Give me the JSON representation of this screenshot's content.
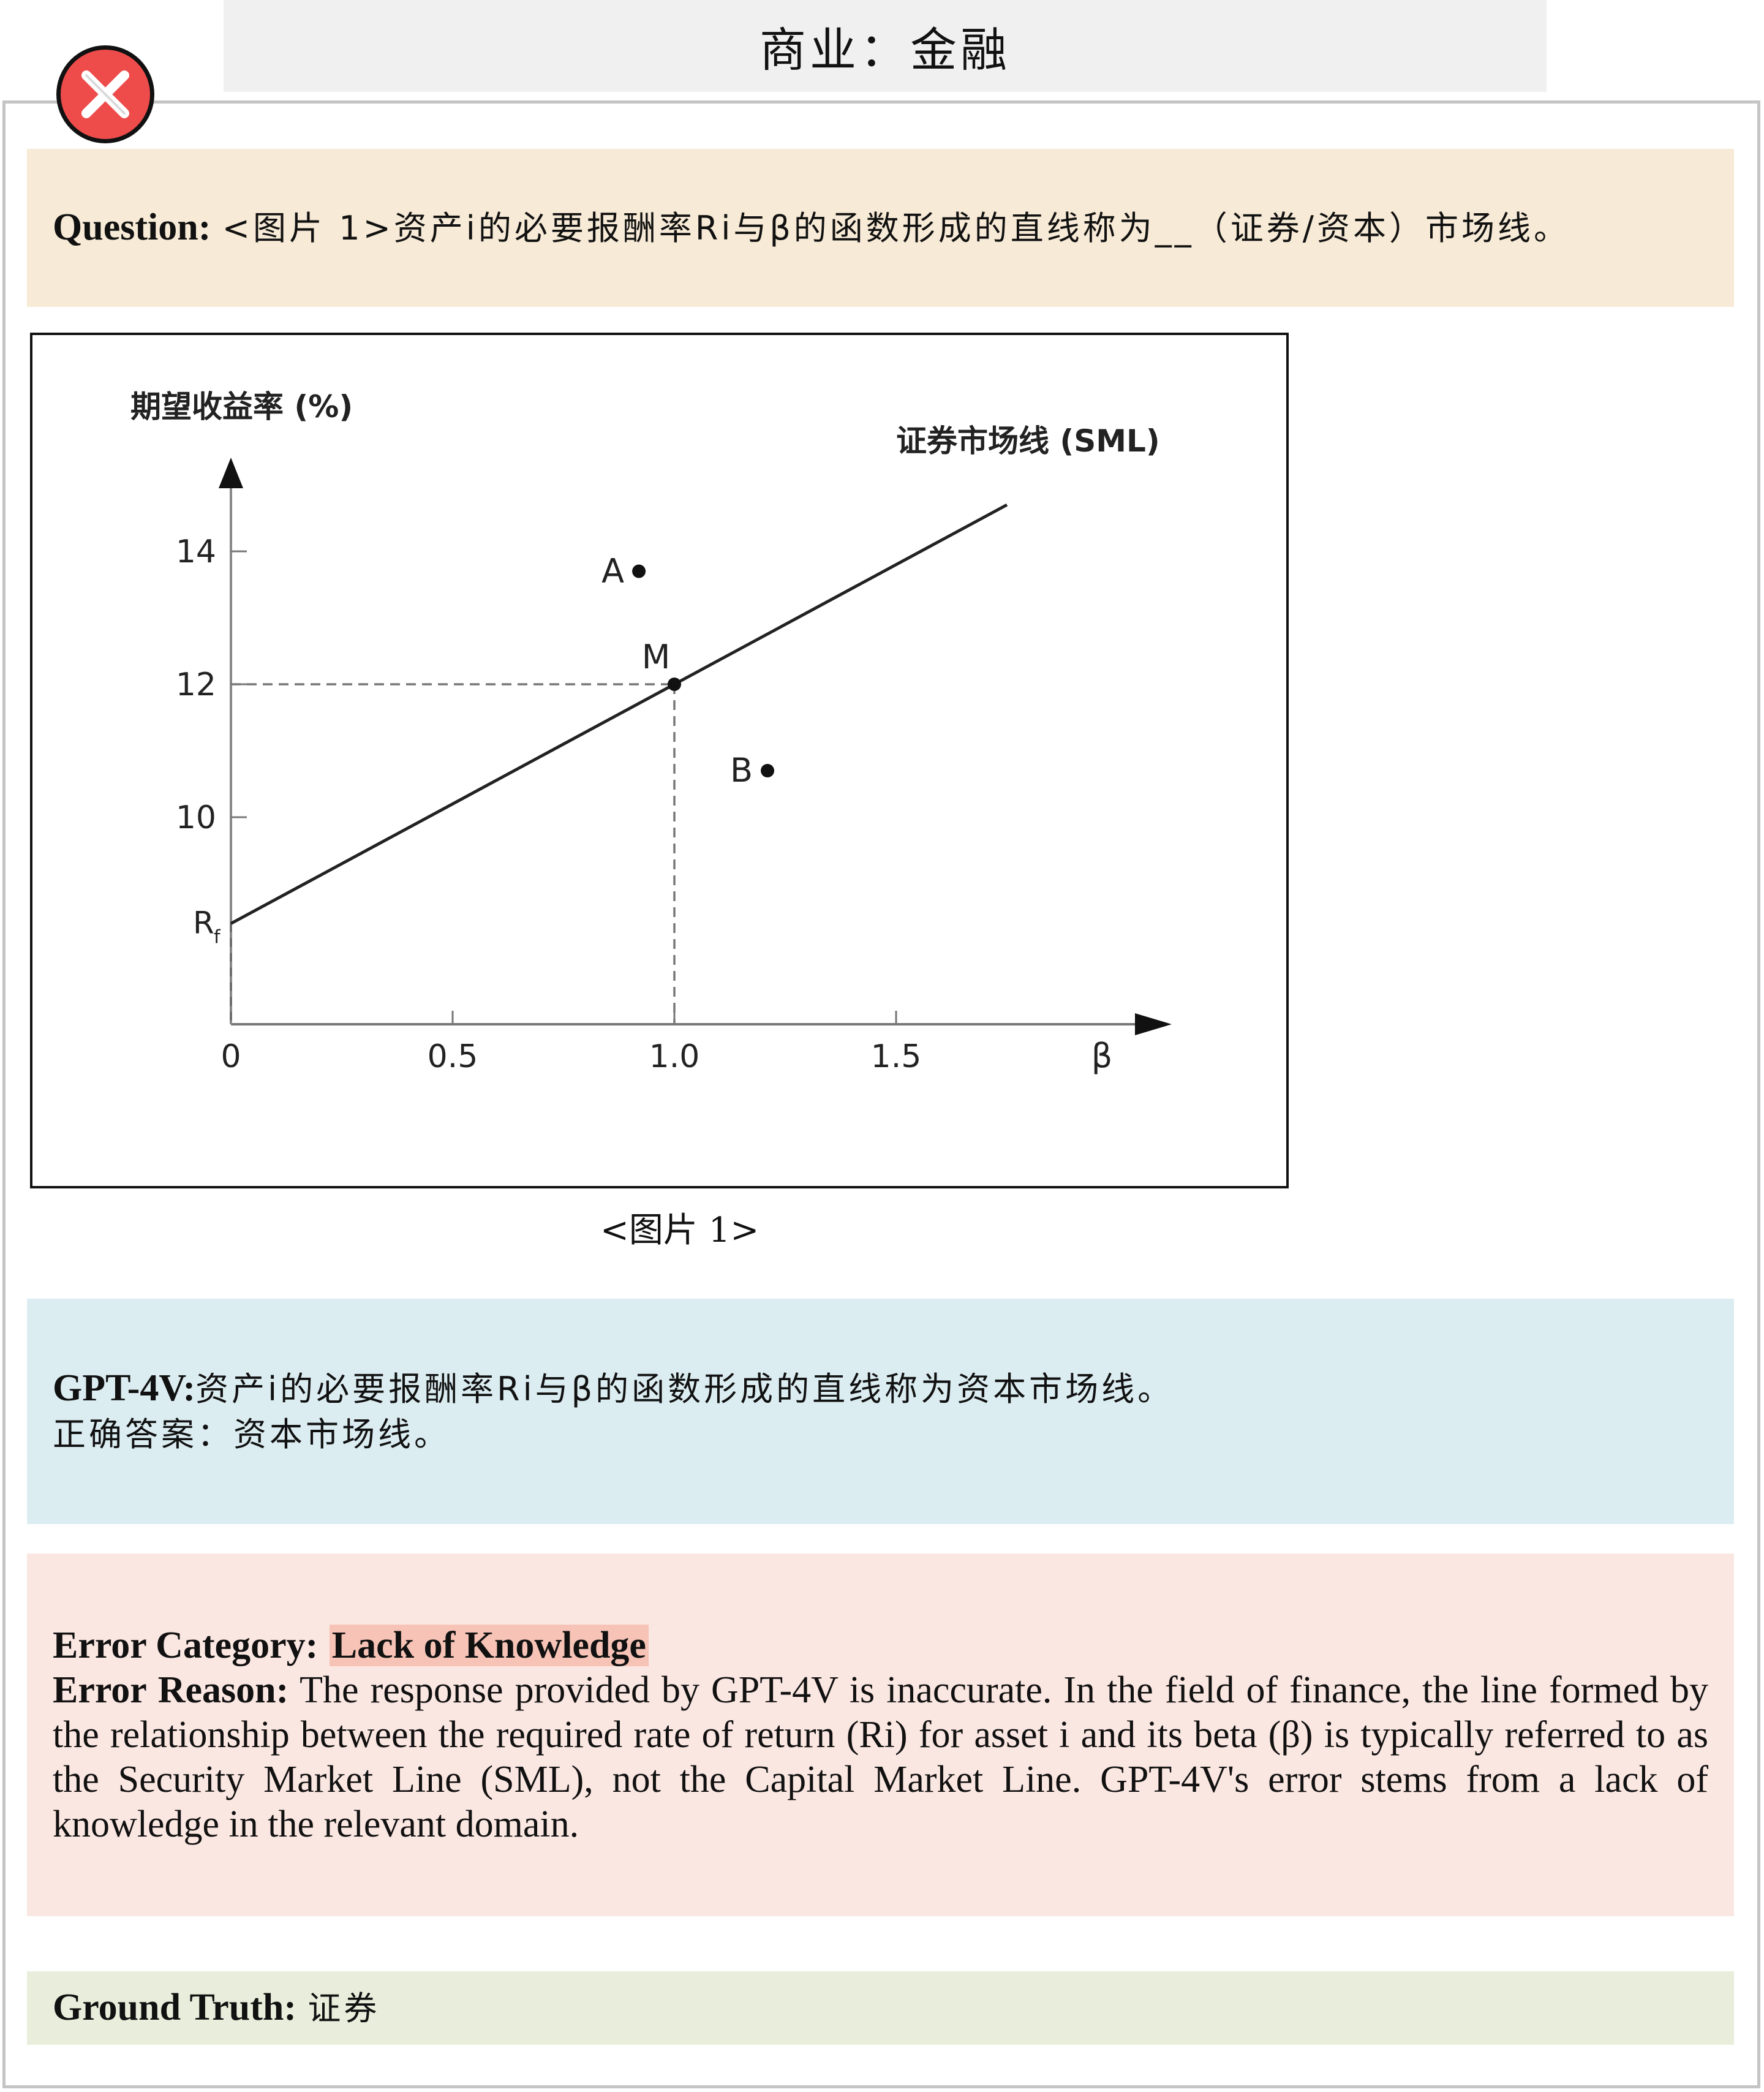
{
  "header": {
    "title": "商业：金融"
  },
  "question": {
    "label": "Question:",
    "text": "<图片 1>资产i的必要报酬率Ri与β的函数形成的直线称为__（证券/资本）市场线。"
  },
  "figure": {
    "caption": "<图片 1>"
  },
  "chart_data": {
    "type": "line",
    "ylabel": "期望收益率 (%)",
    "xlabel": "β",
    "series": [
      {
        "name": "证券市场线 (SML)",
        "x": [
          0,
          1.0,
          1.75
        ],
        "y": [
          8.4,
          12,
          14.7
        ]
      }
    ],
    "points": [
      {
        "label": "A",
        "x": 0.92,
        "y": 13.7
      },
      {
        "label": "M",
        "x": 1.0,
        "y": 12
      },
      {
        "label": "B",
        "x": 1.21,
        "y": 10.7
      }
    ],
    "rf_label": "Rf",
    "xticks": [
      "0",
      "0.5",
      "1.0",
      "1.5"
    ],
    "yticks": [
      "14",
      "12",
      "10"
    ],
    "xlim": [
      0,
      1.75
    ],
    "ylim": [
      8.4,
      14
    ],
    "guides": "dashed lines from M to both axes"
  },
  "gpt": {
    "label": "GPT-4V:",
    "answer": "资产i的必要报酬率Ri与β的函数形成的直线称为资本市场线。",
    "final": "正确答案：资本市场线。"
  },
  "error": {
    "category_label": "Error Category:",
    "category": "Lack of Knowledge",
    "reason_label": "Error Reason:",
    "reason": "The response provided by GPT-4V is inaccurate. In the field of finance, the line formed by the relationship between the required rate of return (Ri) for asset i and its beta (β) is typically referred to as the Security Market Line (SML), not the Capital Market Line. GPT-4V's error stems from a lack of knowledge in the relevant domain."
  },
  "truth": {
    "label": "Ground Truth:",
    "value": "证券"
  },
  "colors": {
    "question_bg": "#f7ead6",
    "gpt_bg": "#dcedf2",
    "error_bg": "#fbe7e2",
    "truth_bg": "#e9eedc",
    "highlight": "#f6c3b6",
    "badge": "#ee4b4b"
  }
}
